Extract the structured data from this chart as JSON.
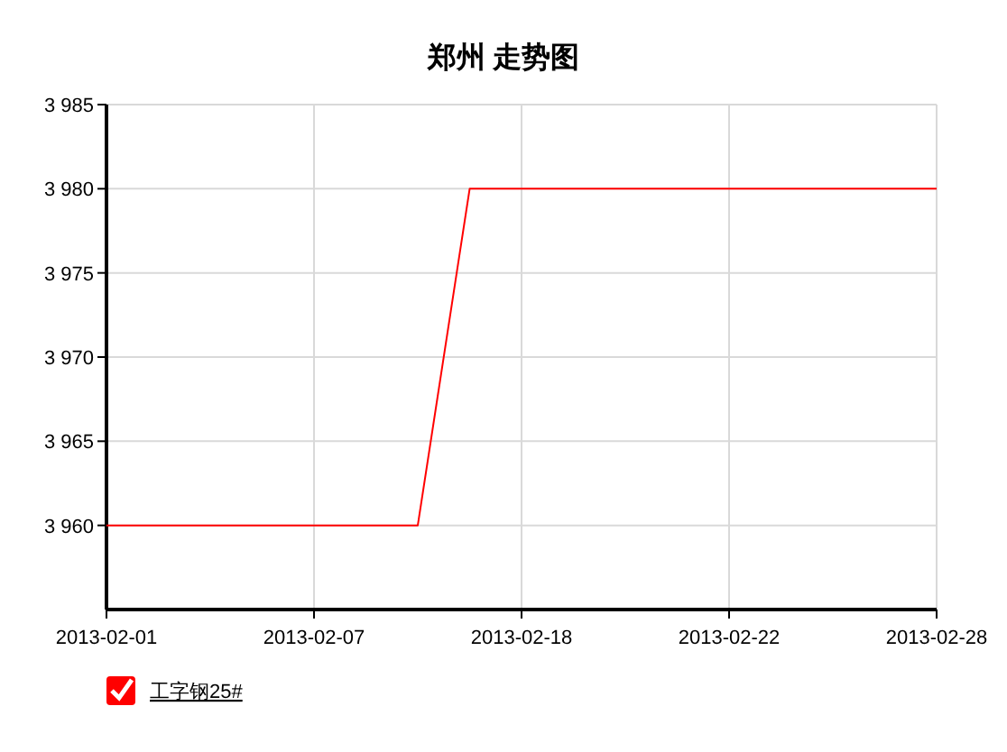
{
  "chart_data": {
    "type": "line",
    "title": "郑州 走势图",
    "categories": [
      "2013-02-01",
      null,
      null,
      null,
      "2013-02-07",
      null,
      null,
      null,
      "2013-02-18",
      null,
      null,
      null,
      "2013-02-22",
      null,
      null,
      null,
      "2013-02-28"
    ],
    "series": [
      {
        "name": "工字钢25#",
        "color": "#ff0000",
        "values": [
          3960,
          3960,
          3960,
          3960,
          3960,
          3960,
          3960,
          3980,
          3980,
          3980,
          3980,
          3980,
          3980,
          3980,
          3980,
          3980,
          3980
        ]
      }
    ],
    "ylim": [
      3955,
      3985
    ],
    "yticks": [
      {
        "value": 3960,
        "label": "3 960"
      },
      {
        "value": 3965,
        "label": "3 965"
      },
      {
        "value": 3970,
        "label": "3 970"
      },
      {
        "value": 3975,
        "label": "3 975"
      },
      {
        "value": 3980,
        "label": "3 980"
      },
      {
        "value": 3985,
        "label": "3 985"
      }
    ],
    "grid": true,
    "legend": "bottom left",
    "marker": "none",
    "line_style": "solid"
  }
}
